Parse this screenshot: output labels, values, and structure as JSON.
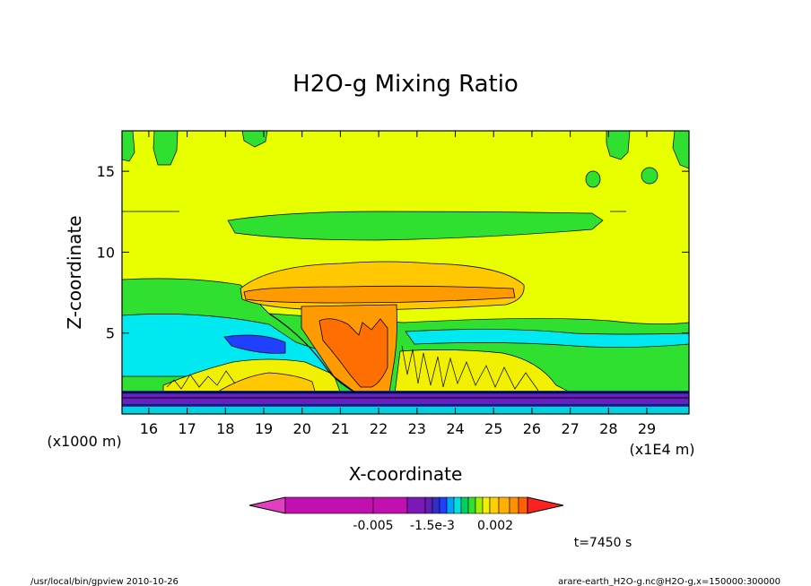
{
  "chart_data": {
    "type": "heatmap",
    "title": "H2O-g Mixing Ratio",
    "xlabel": "X-coordinate",
    "ylabel": "Z-coordinate",
    "x_unit": "(x1E4 m)",
    "z_unit": "(x1000 m)",
    "x_ticks": [
      "16",
      "17",
      "18",
      "19",
      "20",
      "21",
      "22",
      "23",
      "24",
      "25",
      "26",
      "27",
      "28",
      "29"
    ],
    "y_ticks": [
      "5",
      "10",
      "15"
    ],
    "xlim": [
      15.3,
      30.1
    ],
    "ylim": [
      0,
      17.5
    ],
    "colorbar": {
      "tick_labels": [
        "-0.005",
        "-1.5e-3",
        "0.002"
      ],
      "colors": [
        "#e040c0",
        "#c010b0",
        "#c010b0",
        "#7a18b8",
        "#6020b0",
        "#3030c8",
        "#2040ff",
        "#00a0ff",
        "#00e0e0",
        "#00d060",
        "#30e030",
        "#a0f000",
        "#f0f000",
        "#ffd000",
        "#ffb000",
        "#ff9000",
        "#ff6000",
        "#ff2020"
      ]
    },
    "contour_levels": [
      "magenta",
      "purple",
      "violet",
      "blue",
      "cyan",
      "green",
      "yellow",
      "gold",
      "orange"
    ]
  },
  "time_label": "t=7450 s",
  "footer_left": "/usr/local/bin/gpview  2010-10-26",
  "footer_right": "arare-earth_H2O-g.nc@H2O-g,x=150000:300000"
}
